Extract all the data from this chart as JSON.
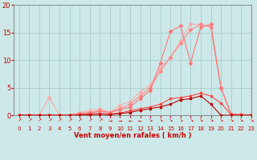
{
  "xlabel": "Vent moyen/en rafales ( km/h )",
  "xlim": [
    -0.5,
    23
  ],
  "ylim": [
    0,
    20
  ],
  "yticks": [
    0,
    5,
    10,
    15,
    20
  ],
  "xticks": [
    0,
    1,
    2,
    3,
    4,
    5,
    6,
    7,
    8,
    9,
    10,
    11,
    12,
    13,
    14,
    15,
    16,
    17,
    18,
    19,
    20,
    21,
    22,
    23
  ],
  "bg_color": "#cce8e8",
  "grid_color": "#aacccc",
  "line_lightest_x": [
    0,
    1,
    2,
    3,
    4,
    5,
    6,
    7,
    8,
    9,
    10,
    11,
    12,
    13,
    14,
    15,
    16,
    17,
    18,
    19,
    20,
    21,
    22,
    23
  ],
  "line_lightest_y": [
    0.0,
    0.0,
    0.0,
    3.2,
    0.0,
    0.0,
    0.5,
    0.8,
    1.2,
    0.5,
    1.8,
    2.5,
    4.2,
    5.5,
    8.5,
    10.5,
    13.5,
    16.5,
    16.5,
    16.0,
    5.0,
    0.2,
    0.1,
    0.1
  ],
  "line_light_x": [
    0,
    1,
    2,
    3,
    4,
    5,
    6,
    7,
    8,
    9,
    10,
    11,
    12,
    13,
    14,
    15,
    16,
    17,
    18,
    19,
    20,
    21,
    22,
    23
  ],
  "line_light_y": [
    0.0,
    0.0,
    0.0,
    0.0,
    0.0,
    0.0,
    0.3,
    0.5,
    0.8,
    0.5,
    1.2,
    2.0,
    3.5,
    5.0,
    8.0,
    10.5,
    13.0,
    15.5,
    16.5,
    16.0,
    5.0,
    0.2,
    0.1,
    0.0
  ],
  "line_mid_x": [
    0,
    1,
    2,
    3,
    4,
    5,
    6,
    7,
    8,
    9,
    10,
    11,
    12,
    13,
    14,
    15,
    16,
    17,
    18,
    19,
    20,
    21,
    22,
    23
  ],
  "line_mid_y": [
    0.0,
    0.0,
    0.0,
    0.0,
    0.0,
    0.0,
    0.2,
    0.4,
    0.7,
    0.5,
    1.0,
    1.5,
    3.0,
    4.5,
    9.5,
    15.2,
    16.2,
    9.5,
    16.0,
    16.5,
    5.0,
    0.2,
    0.1,
    0.0
  ],
  "line_dark_x": [
    0,
    1,
    2,
    3,
    4,
    5,
    6,
    7,
    8,
    9,
    10,
    11,
    12,
    13,
    14,
    15,
    16,
    17,
    18,
    19,
    20,
    21,
    22,
    23
  ],
  "line_dark_y": [
    0.0,
    0.0,
    0.0,
    0.0,
    0.0,
    0.0,
    0.1,
    0.2,
    0.3,
    0.2,
    0.4,
    0.8,
    1.2,
    1.5,
    2.0,
    3.0,
    3.2,
    3.5,
    4.0,
    3.5,
    2.2,
    0.1,
    0.0,
    0.0
  ],
  "line_darkest_x": [
    0,
    1,
    2,
    3,
    4,
    5,
    6,
    7,
    8,
    9,
    10,
    11,
    12,
    13,
    14,
    15,
    16,
    17,
    18,
    19,
    20,
    21,
    22,
    23
  ],
  "line_darkest_y": [
    0.0,
    0.0,
    0.0,
    0.0,
    0.0,
    0.0,
    0.0,
    0.1,
    0.2,
    0.1,
    0.3,
    0.5,
    0.9,
    1.2,
    1.5,
    2.0,
    2.8,
    3.0,
    3.5,
    2.0,
    0.0,
    0.0,
    0.0,
    0.0
  ],
  "color_lightest": "#ffaaaa",
  "color_light": "#ff8888",
  "color_mid": "#ff7777",
  "color_dark": "#ff4444",
  "color_darkest": "#bb0000",
  "wind_arrows": [
    "↗",
    "↗",
    "↗",
    "↗",
    "↗",
    "↗",
    "↗",
    "↗",
    "↗",
    "→",
    "→",
    "←",
    "←",
    "↘",
    "↘",
    "↘",
    "↘",
    "↘",
    "↘",
    "↘",
    "↘",
    "↘",
    "↘",
    "↘"
  ]
}
